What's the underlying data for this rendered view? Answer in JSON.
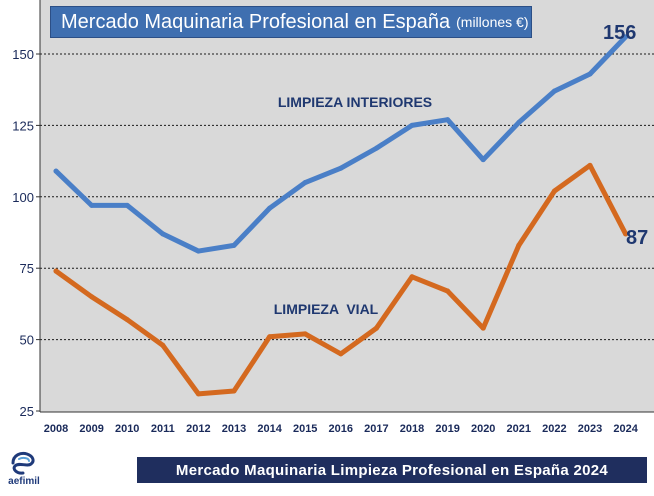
{
  "title": {
    "main": "Mercado Maquinaria Profesional en España",
    "unit": "(millones €)"
  },
  "footer": "Mercado Maquinaria Limpieza Profesional en España 2024",
  "logo": {
    "text": "aefimil",
    "icon": "aefimil-logo"
  },
  "colors": {
    "plot_bg": "#d9d9d9",
    "interiores": "#4a7fc7",
    "vial": "#d4691f",
    "title_bg": "#3f6fb0",
    "footer_bg": "#1f2e5e",
    "end_label": "#1f3870"
  },
  "chart_data": {
    "type": "line",
    "categories": [
      "2008",
      "2009",
      "2010",
      "2011",
      "2012",
      "2013",
      "2014",
      "2015",
      "2016",
      "2017",
      "2018",
      "2019",
      "2020",
      "2021",
      "2022",
      "2023",
      "2024"
    ],
    "series": [
      {
        "name": "LIMPIEZA INTERIORES",
        "color": "#4a7fc7",
        "values": [
          109,
          97,
          97,
          87,
          81,
          83,
          96,
          105,
          110,
          117,
          125,
          127,
          113,
          126,
          137,
          143,
          156
        ]
      },
      {
        "name": "LIMPIEZA  VIAL",
        "color": "#d4691f",
        "values": [
          74,
          65,
          57,
          48,
          31,
          32,
          51,
          52,
          45,
          54,
          72,
          67,
          54,
          83,
          102,
          111,
          87
        ]
      }
    ],
    "end_labels": [
      "156",
      "87"
    ],
    "yticks": [
      25,
      50,
      75,
      100,
      125,
      150
    ],
    "ylim": [
      25,
      160
    ],
    "grid": "horizontal-dotted",
    "xlabel": "",
    "ylabel": ""
  }
}
